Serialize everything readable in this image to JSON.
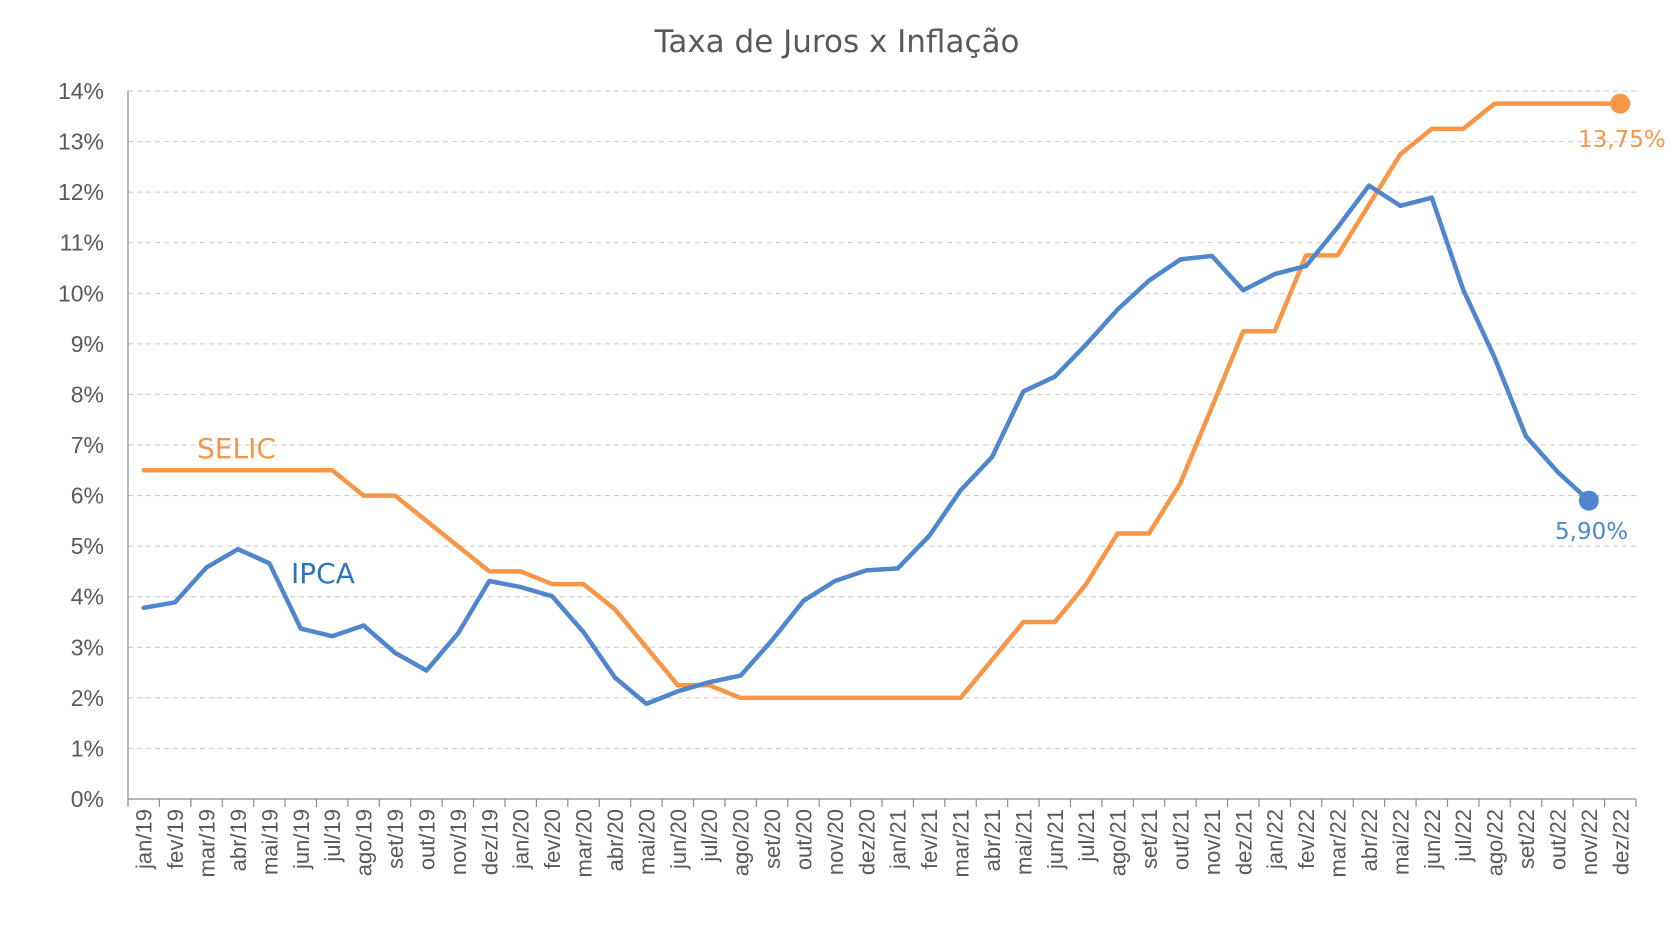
{
  "chart_data": {
    "type": "line",
    "title": "Taxa de Juros x Inflação",
    "xlabel": "",
    "ylabel": "",
    "ylim": [
      0,
      14
    ],
    "yticks": [
      "0%",
      "1%",
      "2%",
      "3%",
      "4%",
      "5%",
      "6%",
      "7%",
      "8%",
      "9%",
      "10%",
      "11%",
      "12%",
      "13%",
      "14%"
    ],
    "grid": true,
    "categories": [
      "jan/19",
      "fev/19",
      "mar/19",
      "abr/19",
      "mai/19",
      "jun/19",
      "jul/19",
      "ago/19",
      "set/19",
      "out/19",
      "nov/19",
      "dez/19",
      "jan/20",
      "fev/20",
      "mar/20",
      "abr/20",
      "mai/20",
      "jun/20",
      "jul/20",
      "ago/20",
      "set/20",
      "out/20",
      "nov/20",
      "dez/20",
      "jan/21",
      "fev/21",
      "mar/21",
      "abr/21",
      "mai/21",
      "jun/21",
      "jul/21",
      "ago/21",
      "set/21",
      "out/21",
      "nov/21",
      "dez/21",
      "jan/22",
      "fev/22",
      "mar/22",
      "abr/22",
      "mai/22",
      "jun/22",
      "jul/22",
      "ago/22",
      "set/22",
      "out/22",
      "nov/22",
      "dez/22"
    ],
    "series": [
      {
        "name": "SELIC",
        "color": "#F79646",
        "values": [
          6.5,
          6.5,
          6.5,
          6.5,
          6.5,
          6.5,
          6.5,
          6.0,
          6.0,
          5.5,
          5.0,
          4.5,
          4.5,
          4.25,
          4.25,
          3.75,
          3.0,
          2.25,
          2.25,
          2.0,
          2.0,
          2.0,
          2.0,
          2.0,
          2.0,
          2.0,
          2.0,
          2.75,
          3.5,
          3.5,
          4.25,
          5.25,
          5.25,
          6.25,
          7.75,
          9.25,
          9.25,
          10.75,
          10.75,
          11.75,
          12.75,
          13.25,
          13.25,
          13.75,
          13.75,
          13.75,
          13.75,
          13.75
        ],
        "end_label": "13,75%"
      },
      {
        "name": "IPCA",
        "color": "#4F86CD",
        "values": [
          3.78,
          3.89,
          4.58,
          4.94,
          4.66,
          3.37,
          3.22,
          3.43,
          2.89,
          2.54,
          3.27,
          4.31,
          4.19,
          4.01,
          3.3,
          2.4,
          1.88,
          2.13,
          2.31,
          2.44,
          3.14,
          3.92,
          4.31,
          4.52,
          4.56,
          5.2,
          6.1,
          6.76,
          8.06,
          8.35,
          8.99,
          9.68,
          10.25,
          10.67,
          10.74,
          10.06,
          10.38,
          10.54,
          11.3,
          12.13,
          11.73,
          11.89,
          10.07,
          8.73,
          7.17,
          6.47,
          5.9,
          null
        ],
        "end_label": "5,90%"
      }
    ]
  }
}
